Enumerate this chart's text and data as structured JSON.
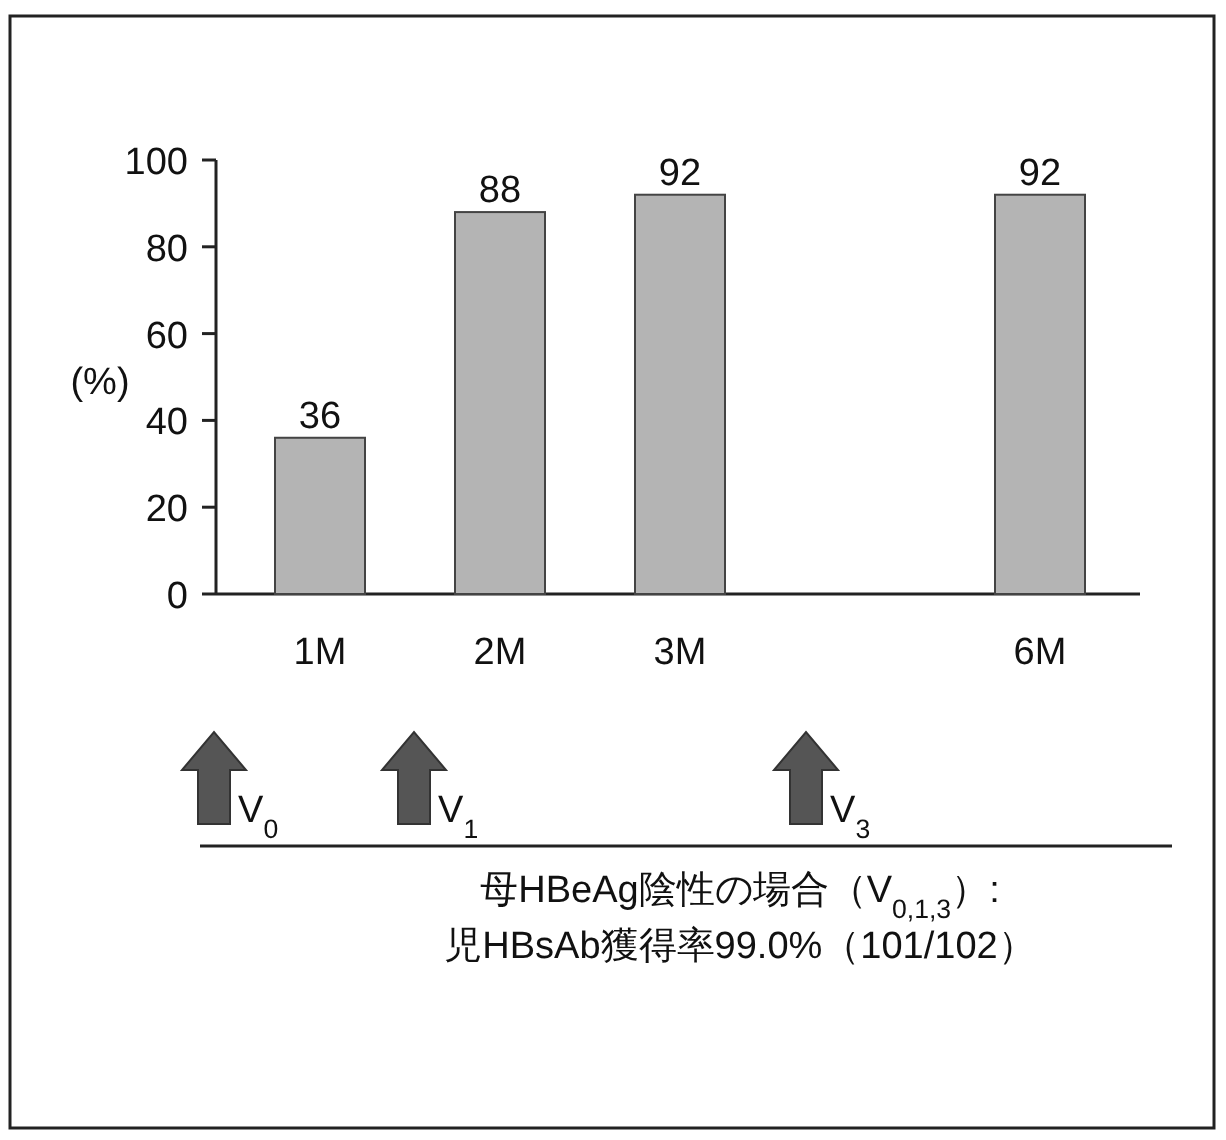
{
  "chart_data": {
    "type": "bar",
    "ylabel": "(%)",
    "categories": [
      "1M",
      "2M",
      "3M",
      null,
      "6M"
    ],
    "values": [
      36,
      88,
      92,
      null,
      92
    ],
    "color": "#b4b4b4",
    "ylim": [
      0,
      100
    ],
    "yticks": [
      0,
      20,
      40,
      60,
      80,
      100
    ],
    "data_labels": true,
    "annotations": [
      "V$_{0}$",
      "V$_{1}$",
      "V$_{3}$",
      "母HBeAg陰性の場合（V$_{0,1,3}$）:",
      "児HBsAb獲得率99.0%（101/102）"
    ]
  }
}
